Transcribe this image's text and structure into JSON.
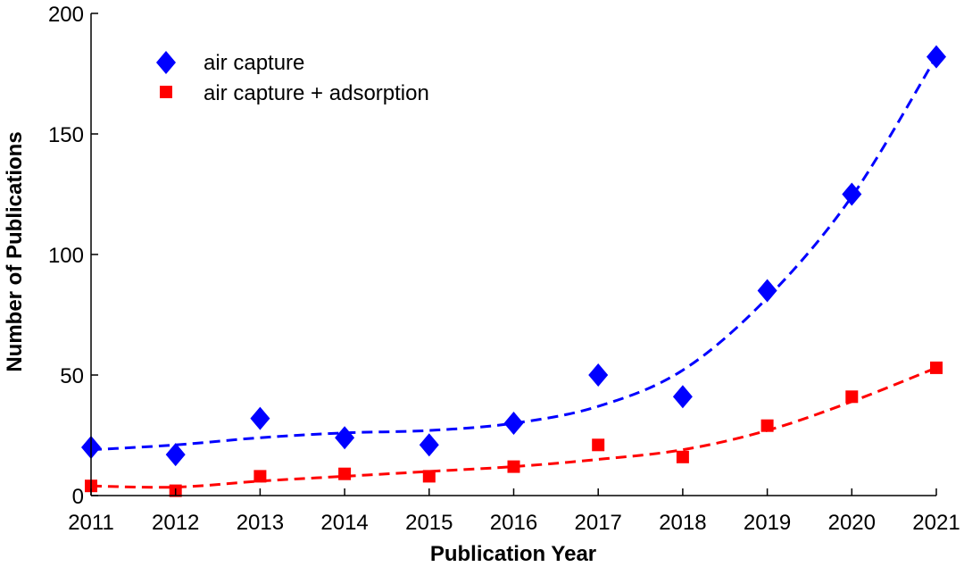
{
  "chart_data": {
    "type": "scatter",
    "title": "",
    "xlabel": "Publication Year",
    "ylabel": "Number of Publications",
    "x": [
      2011,
      2012,
      2013,
      2014,
      2015,
      2016,
      2017,
      2018,
      2019,
      2020,
      2021
    ],
    "xlim": [
      2011,
      2021
    ],
    "ylim": [
      0,
      200
    ],
    "xticks": [
      2011,
      2012,
      2013,
      2014,
      2015,
      2016,
      2017,
      2018,
      2019,
      2020,
      2021
    ],
    "yticks": [
      0,
      50,
      100,
      150,
      200
    ],
    "grid": false,
    "legend_position": "top-left",
    "series": [
      {
        "name": "air capture",
        "marker": "diamond",
        "color": "#0000ff",
        "values": [
          20,
          17,
          32,
          24,
          21,
          30,
          50,
          41,
          85,
          125,
          182
        ],
        "trend": [
          19,
          21,
          24,
          26,
          27,
          30,
          37,
          52,
          82,
          124,
          182
        ]
      },
      {
        "name": "air capture + adsorption",
        "marker": "square",
        "color": "#ff0000",
        "values": [
          4,
          2,
          8,
          9,
          8,
          12,
          21,
          16,
          29,
          41,
          53
        ],
        "trend": [
          4,
          3.5,
          6,
          8,
          10,
          12,
          15,
          19,
          27,
          39,
          53
        ]
      }
    ]
  }
}
